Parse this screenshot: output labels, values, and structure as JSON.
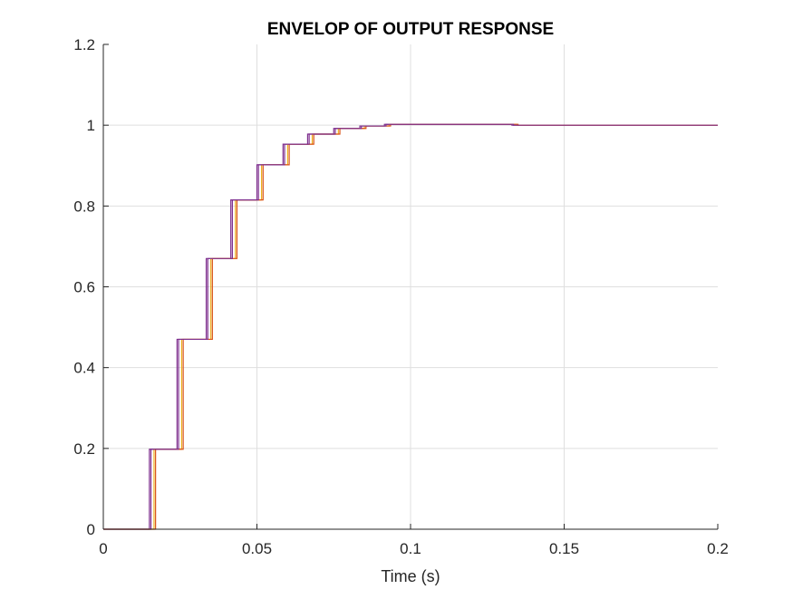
{
  "chart_data": {
    "type": "line",
    "title": "ENVELOP OF OUTPUT RESPONSE",
    "xlabel": "Time (s)",
    "ylabel": "",
    "xlim": [
      0,
      0.2
    ],
    "ylim": [
      0,
      1.2
    ],
    "x_ticks": [
      0,
      0.05,
      0.1,
      0.15,
      0.2
    ],
    "x_tick_labels": [
      "0",
      "0.05",
      "0.1",
      "0.15",
      "0.2"
    ],
    "y_ticks": [
      0,
      0.2,
      0.4,
      0.6,
      0.8,
      1.0,
      1.2
    ],
    "y_tick_labels": [
      "0",
      "0.2",
      "0.4",
      "0.6",
      "0.8",
      "1",
      "1.2"
    ],
    "grid": true,
    "legend": "none",
    "series": [
      {
        "color": "#7e2f8e",
        "x": [
          0,
          0.015,
          0.015,
          0.024,
          0.024,
          0.0335,
          0.0335,
          0.0415,
          0.0415,
          0.05,
          0.05,
          0.0585,
          0.0585,
          0.0665,
          0.0665,
          0.075,
          0.075,
          0.0835,
          0.0835,
          0.0915,
          0.0915,
          0.133,
          0.133,
          0.2
        ],
        "y": [
          0,
          0,
          0.198,
          0.198,
          0.47,
          0.47,
          0.67,
          0.67,
          0.815,
          0.815,
          0.902,
          0.902,
          0.953,
          0.953,
          0.978,
          0.978,
          0.992,
          0.992,
          0.998,
          0.998,
          1.002,
          1.002,
          1.0,
          1.0
        ]
      },
      {
        "color": "#edb120",
        "x": [
          0,
          0.0165,
          0.0165,
          0.0255,
          0.0255,
          0.035,
          0.035,
          0.043,
          0.043,
          0.0515,
          0.0515,
          0.06,
          0.06,
          0.068,
          0.068,
          0.0765,
          0.0765,
          0.085,
          0.085,
          0.093,
          0.093,
          0.1345,
          0.1345,
          0.2
        ],
        "y": [
          0,
          0,
          0.198,
          0.198,
          0.47,
          0.47,
          0.67,
          0.67,
          0.815,
          0.815,
          0.902,
          0.902,
          0.953,
          0.953,
          0.978,
          0.978,
          0.992,
          0.992,
          0.998,
          0.998,
          1.002,
          1.002,
          1.0,
          1.0
        ]
      },
      {
        "color": "#d95319",
        "x": [
          0,
          0.017,
          0.017,
          0.026,
          0.026,
          0.0355,
          0.0355,
          0.0435,
          0.0435,
          0.052,
          0.052,
          0.0605,
          0.0605,
          0.0685,
          0.0685,
          0.077,
          0.077,
          0.0855,
          0.0855,
          0.0935,
          0.0935,
          0.135,
          0.135,
          0.2
        ],
        "y": [
          0,
          0,
          0.198,
          0.198,
          0.47,
          0.47,
          0.67,
          0.67,
          0.815,
          0.815,
          0.902,
          0.902,
          0.953,
          0.953,
          0.978,
          0.978,
          0.992,
          0.992,
          0.998,
          0.998,
          1.002,
          1.002,
          1.0,
          1.0
        ]
      },
      {
        "color": "#7e2f8e",
        "x": [
          0,
          0.0155,
          0.0155,
          0.0245,
          0.0245,
          0.034,
          0.034,
          0.042,
          0.042,
          0.0505,
          0.0505,
          0.059,
          0.059,
          0.067,
          0.067,
          0.0755,
          0.0755,
          0.084,
          0.084,
          0.092,
          0.092,
          0.1335,
          0.1335,
          0.2
        ],
        "y": [
          0,
          0,
          0.198,
          0.198,
          0.47,
          0.47,
          0.67,
          0.67,
          0.815,
          0.815,
          0.902,
          0.902,
          0.953,
          0.953,
          0.978,
          0.978,
          0.992,
          0.992,
          0.998,
          0.998,
          1.002,
          1.002,
          1.0,
          1.0
        ]
      }
    ]
  }
}
